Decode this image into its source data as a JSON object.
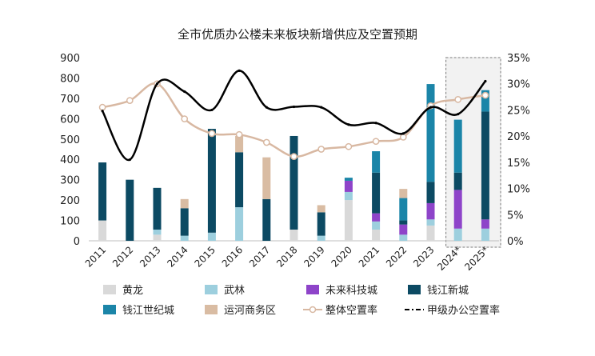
{
  "chart_data": {
    "type": "bar",
    "title": "全市优质办公楼未来板块新增供应及空置预期",
    "categories": [
      "2011",
      "2012",
      "2013",
      "2014",
      "2015",
      "2016",
      "2017",
      "2018",
      "2019",
      "2020",
      "2021",
      "2022",
      "2023",
      "2024*",
      "2025*"
    ],
    "ylim_left": [
      0,
      900
    ],
    "left_ticks": [
      0,
      100,
      200,
      300,
      400,
      500,
      600,
      700,
      800,
      900
    ],
    "ylim_right": [
      0,
      35
    ],
    "right_ticks": [
      "0%",
      "5%",
      "10%",
      "15%",
      "20%",
      "25%",
      "30%",
      "35%"
    ],
    "forecast_categories": [
      "2024*",
      "2025*"
    ],
    "series": [
      {
        "name": "黄龙",
        "kind": "bar",
        "color": "#d9d9d9",
        "values": [
          100,
          0,
          30,
          0,
          0,
          0,
          0,
          55,
          0,
          200,
          55,
          0,
          75,
          0,
          0
        ]
      },
      {
        "name": "武林",
        "kind": "bar",
        "color": "#9dcfde",
        "values": [
          0,
          0,
          25,
          25,
          40,
          165,
          0,
          0,
          25,
          40,
          40,
          30,
          30,
          60,
          60
        ]
      },
      {
        "name": "未来科技城",
        "kind": "bar",
        "color": "#8e44c9",
        "values": [
          0,
          0,
          0,
          0,
          0,
          0,
          0,
          0,
          0,
          55,
          40,
          50,
          80,
          190,
          45
        ]
      },
      {
        "name": "钱江新城",
        "kind": "bar",
        "color": "#0c4a63",
        "values": [
          285,
          300,
          205,
          135,
          510,
          270,
          205,
          460,
          115,
          0,
          200,
          20,
          105,
          85,
          530
        ]
      },
      {
        "name": "钱江世纪城",
        "kind": "bar",
        "color": "#1b85a8",
        "values": [
          0,
          0,
          0,
          0,
          0,
          0,
          0,
          0,
          0,
          15,
          105,
          110,
          480,
          260,
          105
        ]
      },
      {
        "name": "运河商务区",
        "kind": "bar",
        "color": "#d9bca3",
        "values": [
          0,
          0,
          0,
          45,
          0,
          80,
          205,
          0,
          35,
          0,
          0,
          45,
          0,
          0,
          0
        ]
      },
      {
        "name": "整体空置率",
        "kind": "line",
        "color": "#d8b8a2",
        "values": [
          25.5,
          26.8,
          30.0,
          23.3,
          20.5,
          20.3,
          18.8,
          16.1,
          17.5,
          18.0,
          19.0,
          19.8,
          25.8,
          27.0,
          27.8
        ]
      },
      {
        "name": "甲级办公空置率",
        "kind": "line",
        "color": "#000000",
        "values": [
          24.8,
          15.5,
          30.0,
          28.5,
          25.0,
          32.5,
          25.5,
          25.6,
          25.5,
          22.2,
          22.5,
          20.5,
          25.5,
          24.2,
          30.5
        ]
      }
    ]
  }
}
